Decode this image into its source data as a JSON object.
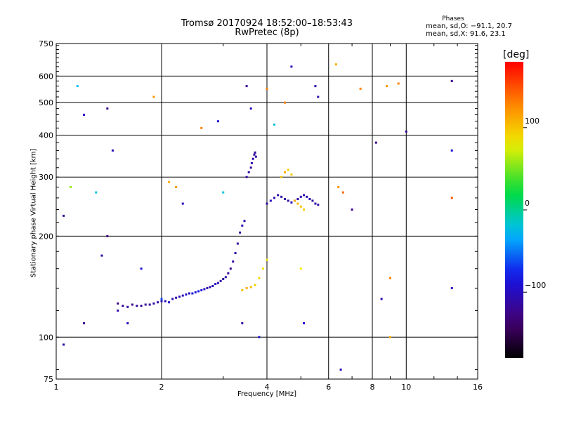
{
  "chart_data": {
    "type": "scatter",
    "title": "Tromsø 20170924 18:52:00–18:53:43",
    "subtitle": "RwPretec (8p)",
    "xlabel": "Frequency [MHz]",
    "ylabel": "Stationary phase Virtual Height [km]",
    "x_scale": "log",
    "y_scale": "log",
    "xlim": [
      1,
      16
    ],
    "ylim": [
      75,
      750
    ],
    "x_ticks": [
      "1",
      "2",
      "4",
      "6",
      "8",
      "10",
      "16"
    ],
    "x_tick_values": [
      1,
      2,
      4,
      6,
      8,
      10,
      16
    ],
    "y_ticks": [
      "75",
      "100",
      "200",
      "300",
      "400",
      "500",
      "600",
      "750"
    ],
    "y_tick_values": [
      75,
      100,
      200,
      300,
      400,
      500,
      600,
      750
    ],
    "grid": true,
    "phases_label": "Phases",
    "stats_o": "mean, sd,O: −91.1, 20.7",
    "stats_x": "mean, sd,X:  91.6, 23.1",
    "colorbar": {
      "title": "[deg]",
      "range": [
        -180,
        180
      ],
      "ticks": [
        "100",
        "0",
        "−100"
      ],
      "tick_values": [
        100,
        0,
        -100
      ]
    },
    "series": [
      {
        "description": "O-mode E/F1 trace",
        "points": [
          [
            1.5,
            126,
            -130
          ],
          [
            1.55,
            124,
            -120
          ],
          [
            1.6,
            123,
            -115
          ],
          [
            1.65,
            125,
            -125
          ],
          [
            1.7,
            124,
            -110
          ],
          [
            1.75,
            124,
            -120
          ],
          [
            1.8,
            125,
            -115
          ],
          [
            1.85,
            125,
            -118
          ],
          [
            1.9,
            126,
            -110
          ],
          [
            1.95,
            127,
            -112
          ],
          [
            2.0,
            128,
            -105
          ],
          [
            2.05,
            128,
            -100
          ],
          [
            2.1,
            127,
            -95
          ],
          [
            2.15,
            130,
            -105
          ],
          [
            2.2,
            131,
            -110
          ],
          [
            2.25,
            132,
            -105
          ],
          [
            2.3,
            133,
            -100
          ],
          [
            2.35,
            134,
            -95
          ],
          [
            2.4,
            135,
            -100
          ],
          [
            2.45,
            135,
            -90
          ],
          [
            2.5,
            136,
            -85
          ],
          [
            2.55,
            137,
            -80
          ],
          [
            2.6,
            138,
            -90
          ],
          [
            2.65,
            139,
            -100
          ],
          [
            2.7,
            140,
            -105
          ],
          [
            2.75,
            141,
            -110
          ],
          [
            2.8,
            142,
            -100
          ],
          [
            2.85,
            144,
            -95
          ],
          [
            2.9,
            145,
            -105
          ],
          [
            2.95,
            147,
            -110
          ],
          [
            3.0,
            149,
            -115
          ],
          [
            3.05,
            151,
            -110
          ],
          [
            3.1,
            155,
            -115
          ],
          [
            3.15,
            160,
            -120
          ],
          [
            3.2,
            168,
            -115
          ],
          [
            3.25,
            178,
            -110
          ],
          [
            3.3,
            190,
            -115
          ],
          [
            3.35,
            205,
            -112
          ],
          [
            3.4,
            215,
            -108
          ],
          [
            3.45,
            222,
            -110
          ]
        ]
      },
      {
        "description": "X-mode E/F1 trace",
        "points": [
          [
            3.4,
            138,
            100
          ],
          [
            3.5,
            140,
            110
          ],
          [
            3.6,
            141,
            105
          ],
          [
            3.7,
            143,
            95
          ],
          [
            3.8,
            150,
            90
          ],
          [
            3.9,
            160,
            85
          ],
          [
            4.0,
            170,
            80
          ]
        ]
      },
      {
        "description": "O-mode F2 trace",
        "points": [
          [
            3.5,
            300,
            -110
          ],
          [
            3.55,
            310,
            -112
          ],
          [
            3.6,
            320,
            -115
          ],
          [
            3.62,
            330,
            -108
          ],
          [
            3.65,
            340,
            -110
          ],
          [
            3.68,
            350,
            -112
          ],
          [
            3.7,
            355,
            -115
          ],
          [
            3.72,
            345,
            -110
          ],
          [
            4.0,
            250,
            -110
          ],
          [
            4.1,
            255,
            -100
          ],
          [
            4.2,
            260,
            -105
          ],
          [
            4.3,
            265,
            -110
          ],
          [
            4.4,
            262,
            -108
          ],
          [
            4.5,
            258,
            -112
          ],
          [
            4.6,
            255,
            -110
          ],
          [
            4.7,
            252,
            -105
          ],
          [
            4.8,
            255,
            -110
          ],
          [
            4.9,
            258,
            -112
          ],
          [
            5.0,
            262,
            -108
          ],
          [
            5.1,
            265,
            -110
          ],
          [
            5.2,
            262,
            -105
          ],
          [
            5.3,
            258,
            -110
          ],
          [
            5.4,
            255,
            -112
          ],
          [
            5.5,
            250,
            -108
          ],
          [
            5.6,
            248,
            -110
          ]
        ]
      },
      {
        "description": "X-mode F2 trace",
        "points": [
          [
            4.4,
            300,
            100
          ],
          [
            4.5,
            310,
            110
          ],
          [
            4.6,
            315,
            95
          ],
          [
            4.7,
            305,
            100
          ],
          [
            4.8,
            255,
            110
          ],
          [
            4.9,
            250,
            105
          ],
          [
            5.0,
            245,
            100
          ],
          [
            5.1,
            240,
            95
          ]
        ]
      },
      {
        "description": "scattered echoes",
        "points": [
          [
            1.05,
            230,
            -120
          ],
          [
            1.05,
            95,
            -110
          ],
          [
            1.1,
            280,
            60
          ],
          [
            1.15,
            560,
            -30
          ],
          [
            1.2,
            110,
            -120
          ],
          [
            1.2,
            460,
            -100
          ],
          [
            1.3,
            270,
            -20
          ],
          [
            1.35,
            175,
            -115
          ],
          [
            1.4,
            200,
            -130
          ],
          [
            1.4,
            480,
            -120
          ],
          [
            1.45,
            360,
            -100
          ],
          [
            1.5,
            120,
            -110
          ],
          [
            1.6,
            110,
            -100
          ],
          [
            1.75,
            160,
            -90
          ],
          [
            1.9,
            520,
            120
          ],
          [
            2.0,
            130,
            -60
          ],
          [
            2.1,
            290,
            110
          ],
          [
            2.2,
            280,
            120
          ],
          [
            2.3,
            250,
            -100
          ],
          [
            2.6,
            420,
            130
          ],
          [
            2.9,
            440,
            -90
          ],
          [
            3.0,
            270,
            -20
          ],
          [
            3.4,
            110,
            -115
          ],
          [
            3.5,
            560,
            -120
          ],
          [
            3.6,
            480,
            -100
          ],
          [
            3.8,
            100,
            -90
          ],
          [
            4.0,
            550,
            130
          ],
          [
            4.2,
            430,
            -20
          ],
          [
            4.5,
            500,
            130
          ],
          [
            4.7,
            640,
            -100
          ],
          [
            5.0,
            160,
            80
          ],
          [
            5.1,
            110,
            -90
          ],
          [
            5.5,
            560,
            -110
          ],
          [
            5.6,
            520,
            -110
          ],
          [
            6.3,
            650,
            110
          ],
          [
            6.4,
            280,
            120
          ],
          [
            6.5,
            80,
            -100
          ],
          [
            6.6,
            270,
            140
          ],
          [
            7.0,
            240,
            -120
          ],
          [
            7.4,
            550,
            130
          ],
          [
            8.2,
            380,
            -120
          ],
          [
            8.5,
            130,
            -110
          ],
          [
            8.8,
            560,
            120
          ],
          [
            9.0,
            150,
            130
          ],
          [
            9.0,
            100,
            110
          ],
          [
            9.5,
            570,
            130
          ],
          [
            10.0,
            410,
            -120
          ],
          [
            13.5,
            580,
            -120
          ],
          [
            13.5,
            360,
            -90
          ],
          [
            13.5,
            140,
            -100
          ],
          [
            13.5,
            260,
            150
          ]
        ]
      }
    ]
  }
}
